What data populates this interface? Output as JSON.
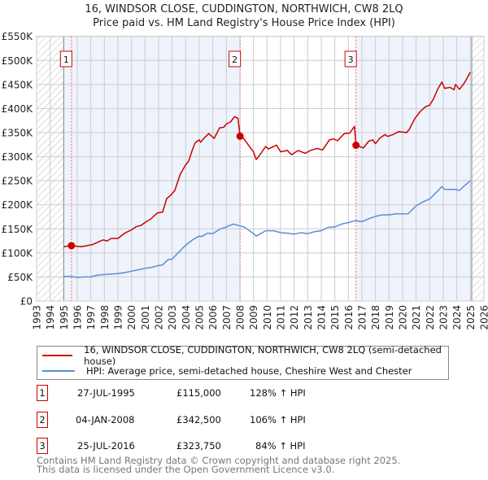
{
  "chart_data": {
    "type": "line",
    "title": "16, WINDSOR CLOSE, CUDDINGTON, NORTHWICH, CW8 2LQ",
    "subtitle": "Price paid vs. HM Land Registry's House Price Index (HPI)",
    "xlim": [
      1993,
      2026
    ],
    "ylim": [
      0,
      550000
    ],
    "x_ticks": [
      "1993",
      "1994",
      "1995",
      "1996",
      "1997",
      "1998",
      "1999",
      "2000",
      "2001",
      "2002",
      "2003",
      "2004",
      "2005",
      "2006",
      "2007",
      "2008",
      "2009",
      "2010",
      "2011",
      "2012",
      "2013",
      "2014",
      "2015",
      "2016",
      "2017",
      "2018",
      "2019",
      "2020",
      "2021",
      "2022",
      "2023",
      "2024",
      "2025",
      "2026"
    ],
    "y_ticks": [
      {
        "value": 0,
        "label": "£0"
      },
      {
        "value": 50000,
        "label": "£50K"
      },
      {
        "value": 100000,
        "label": "£100K"
      },
      {
        "value": 150000,
        "label": "£150K"
      },
      {
        "value": 200000,
        "label": "£200K"
      },
      {
        "value": 250000,
        "label": "£250K"
      },
      {
        "value": 300000,
        "label": "£300K"
      },
      {
        "value": 350000,
        "label": "£350K"
      },
      {
        "value": 400000,
        "label": "£400K"
      },
      {
        "value": 450000,
        "label": "£450K"
      },
      {
        "value": 500000,
        "label": "£500K"
      },
      {
        "value": 550000,
        "label": "£550K"
      }
    ],
    "grid": true,
    "data_range": [
      1995,
      2025.1
    ],
    "shaded_periods": [
      [
        1995,
        2008.01
      ],
      [
        2016.56,
        2025.1
      ]
    ],
    "series": [
      {
        "name": "16, WINDSOR CLOSE, CUDDINGTON, NORTHWICH, CW8 2LQ (semi-detached house)",
        "color": "#cc0000",
        "points": [
          [
            1995.0,
            113
          ],
          [
            1995.5,
            115
          ],
          [
            1996.3,
            113
          ],
          [
            1997.1,
            117
          ],
          [
            1997.5,
            122
          ],
          [
            1997.9,
            127
          ],
          [
            1998.2,
            125
          ],
          [
            1998.5,
            130
          ],
          [
            1999.0,
            130
          ],
          [
            1999.5,
            141
          ],
          [
            2000.0,
            148
          ],
          [
            2000.4,
            155
          ],
          [
            2000.7,
            157
          ],
          [
            2001.1,
            165
          ],
          [
            2001.4,
            170
          ],
          [
            2001.9,
            183
          ],
          [
            2002.3,
            185
          ],
          [
            2002.6,
            213
          ],
          [
            2002.9,
            220
          ],
          [
            2003.2,
            230
          ],
          [
            2003.6,
            264
          ],
          [
            2004.0,
            283
          ],
          [
            2004.2,
            290
          ],
          [
            2004.5,
            315
          ],
          [
            2004.7,
            329
          ],
          [
            2005.0,
            335
          ],
          [
            2005.1,
            330
          ],
          [
            2005.4,
            340
          ],
          [
            2005.7,
            348
          ],
          [
            2006.1,
            338
          ],
          [
            2006.5,
            360
          ],
          [
            2006.8,
            361
          ],
          [
            2007.0,
            368
          ],
          [
            2007.3,
            372
          ],
          [
            2007.6,
            383
          ],
          [
            2007.85,
            380
          ],
          [
            2008.01,
            342.5
          ],
          [
            2008.3,
            337
          ],
          [
            2008.7,
            321
          ],
          [
            2009.0,
            310
          ],
          [
            2009.2,
            294
          ],
          [
            2009.4,
            301
          ],
          [
            2009.9,
            321
          ],
          [
            2010.1,
            316
          ],
          [
            2010.4,
            320
          ],
          [
            2010.7,
            324
          ],
          [
            2011.0,
            310
          ],
          [
            2011.5,
            313
          ],
          [
            2011.8,
            304
          ],
          [
            2012.3,
            313
          ],
          [
            2012.8,
            307
          ],
          [
            2013.3,
            314
          ],
          [
            2013.7,
            317
          ],
          [
            2014.1,
            314
          ],
          [
            2014.6,
            335
          ],
          [
            2014.9,
            337
          ],
          [
            2015.2,
            333
          ],
          [
            2015.7,
            348
          ],
          [
            2016.1,
            349
          ],
          [
            2016.45,
            363
          ],
          [
            2016.56,
            323.75
          ],
          [
            2016.8,
            321
          ],
          [
            2017.1,
            318
          ],
          [
            2017.5,
            332
          ],
          [
            2017.8,
            335
          ],
          [
            2018.0,
            327
          ],
          [
            2018.3,
            338
          ],
          [
            2018.7,
            346
          ],
          [
            2018.9,
            342
          ],
          [
            2019.3,
            346
          ],
          [
            2019.7,
            352
          ],
          [
            2020.3,
            350
          ],
          [
            2020.5,
            357
          ],
          [
            2020.9,
            379
          ],
          [
            2021.3,
            394
          ],
          [
            2021.7,
            404
          ],
          [
            2022.0,
            407
          ],
          [
            2022.3,
            421
          ],
          [
            2022.6,
            441
          ],
          [
            2022.9,
            455
          ],
          [
            2023.1,
            442
          ],
          [
            2023.5,
            444
          ],
          [
            2023.8,
            439
          ],
          [
            2023.9,
            450
          ],
          [
            2024.2,
            440
          ],
          [
            2024.5,
            451
          ],
          [
            2024.7,
            460
          ],
          [
            2025.0,
            476
          ]
        ]
      },
      {
        "name": "HPI: Average price, semi-detached house, Cheshire West and Chester",
        "color": "#5b8fd4",
        "points": [
          [
            1995.0,
            51
          ],
          [
            1995.5,
            51
          ],
          [
            1996.0,
            49
          ],
          [
            1996.5,
            50
          ],
          [
            1997.0,
            50
          ],
          [
            1997.5,
            54
          ],
          [
            1998.0,
            55
          ],
          [
            1998.5,
            56
          ],
          [
            1999.0,
            57
          ],
          [
            1999.5,
            59
          ],
          [
            2000.0,
            62
          ],
          [
            2000.5,
            65
          ],
          [
            2001.0,
            68
          ],
          [
            2001.5,
            70
          ],
          [
            2002.0,
            74
          ],
          [
            2002.3,
            75
          ],
          [
            2002.7,
            86
          ],
          [
            2003.0,
            87
          ],
          [
            2003.5,
            102
          ],
          [
            2004.0,
            116
          ],
          [
            2004.5,
            127
          ],
          [
            2005.0,
            135
          ],
          [
            2005.2,
            134
          ],
          [
            2005.6,
            141
          ],
          [
            2006.0,
            140
          ],
          [
            2006.5,
            149
          ],
          [
            2007.0,
            154
          ],
          [
            2007.5,
            160
          ],
          [
            2008.0,
            156
          ],
          [
            2008.3,
            154
          ],
          [
            2009.0,
            140
          ],
          [
            2009.2,
            135
          ],
          [
            2009.9,
            146
          ],
          [
            2010.5,
            146
          ],
          [
            2011.0,
            142
          ],
          [
            2011.5,
            141
          ],
          [
            2012.0,
            139
          ],
          [
            2012.5,
            142
          ],
          [
            2013.0,
            140
          ],
          [
            2013.5,
            144
          ],
          [
            2014.0,
            146
          ],
          [
            2014.5,
            153
          ],
          [
            2015.0,
            154
          ],
          [
            2015.5,
            160
          ],
          [
            2016.0,
            163
          ],
          [
            2016.5,
            167
          ],
          [
            2017.0,
            165
          ],
          [
            2017.5,
            171
          ],
          [
            2018.0,
            176
          ],
          [
            2018.5,
            179
          ],
          [
            2019.0,
            179
          ],
          [
            2019.5,
            181
          ],
          [
            2020.0,
            181
          ],
          [
            2020.4,
            181
          ],
          [
            2021.0,
            198
          ],
          [
            2021.5,
            206
          ],
          [
            2022.0,
            212
          ],
          [
            2022.5,
            226
          ],
          [
            2022.9,
            238
          ],
          [
            2023.1,
            232
          ],
          [
            2023.8,
            232
          ],
          [
            2024.2,
            230
          ],
          [
            2024.5,
            238
          ],
          [
            2025.0,
            250
          ]
        ]
      }
    ],
    "value_unit": "thousands GBP",
    "sales": [
      {
        "label": "1",
        "x": 2008.01,
        "xs": 1995.57,
        "value": 115
      },
      {
        "label": "2",
        "xs": 2008.01,
        "value": 342.5
      },
      {
        "label": "3",
        "xs": 2016.56,
        "value": 323.75
      }
    ]
  },
  "legend": {
    "property_label": "16, WINDSOR CLOSE, CUDDINGTON, NORTHWICH, CW8 2LQ (semi-detached house)",
    "hpi_label": "HPI: Average price, semi-detached house, Cheshire West and Chester",
    "property_color": "#cc0000",
    "hpi_color": "#5b8fd4"
  },
  "transactions": [
    {
      "num": "1",
      "date": "27-JUL-1995",
      "price": "£115,000",
      "hpi": "128% ↑ HPI"
    },
    {
      "num": "2",
      "date": "04-JAN-2008",
      "price": "£342,500",
      "hpi": "106% ↑ HPI"
    },
    {
      "num": "3",
      "date": "25-JUL-2016",
      "price": "£323,750",
      "hpi": "84% ↑ HPI"
    }
  ],
  "footer": {
    "line1": "Contains HM Land Registry data © Crown copyright and database right 2025.",
    "line2": "This data is licensed under the Open Government Licence v3.0."
  }
}
